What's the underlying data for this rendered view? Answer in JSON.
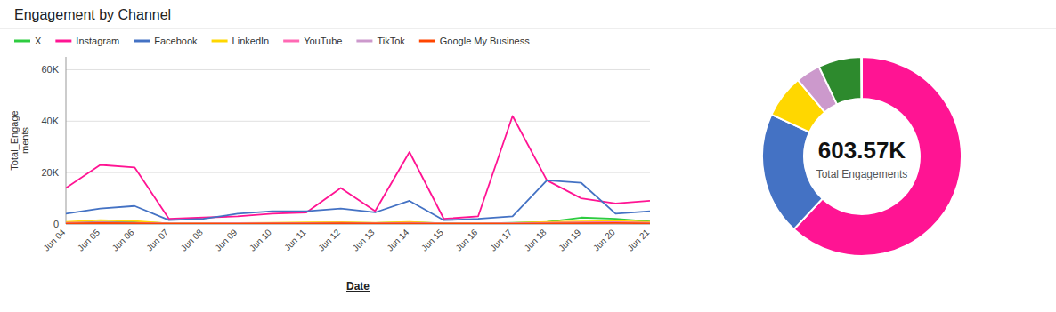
{
  "chart_data": [
    {
      "type": "line",
      "title": "Engagement by Channel",
      "xlabel": "Date",
      "ylabel": "Total_Engage\nments",
      "categories": [
        "Jun 04",
        "Jun 05",
        "Jun 06",
        "Jun 07",
        "Jun 08",
        "Jun 09",
        "Jun 10",
        "Jun 11",
        "Jun 12",
        "Jun 13",
        "Jun 14",
        "Jun 15",
        "Jun 16",
        "Jun 17",
        "Jun 18",
        "Jun 19",
        "Jun 20",
        "Jun 21"
      ],
      "series": [
        {
          "name": "X",
          "color": "#2ecc40",
          "values": [
            500,
            800,
            700,
            300,
            200,
            300,
            300,
            400,
            500,
            400,
            600,
            300,
            200,
            500,
            800,
            2500,
            2000,
            1000
          ]
        },
        {
          "name": "Instagram",
          "color": "#ff1493",
          "values": [
            14000,
            23000,
            22000,
            2000,
            2500,
            3000,
            4000,
            4500,
            14000,
            5000,
            28000,
            2000,
            3000,
            42000,
            17000,
            10000,
            8000,
            9000
          ]
        },
        {
          "name": "Facebook",
          "color": "#4472c4",
          "values": [
            4000,
            6000,
            7000,
            1500,
            2000,
            4000,
            5000,
            5000,
            6000,
            4500,
            9000,
            1500,
            2000,
            3000,
            17000,
            16000,
            4000,
            5000
          ]
        },
        {
          "name": "LinkedIn",
          "color": "#ffd700",
          "values": [
            800,
            1500,
            1200,
            200,
            300,
            400,
            500,
            600,
            700,
            500,
            800,
            200,
            300,
            400,
            800,
            1000,
            1200,
            800
          ]
        },
        {
          "name": "YouTube",
          "color": "#ff69b4",
          "values": [
            500,
            600,
            500,
            200,
            200,
            300,
            300,
            400,
            500,
            300,
            500,
            200,
            200,
            300,
            500,
            600,
            700,
            500
          ]
        },
        {
          "name": "TikTok",
          "color": "#cc99cc",
          "values": [
            300,
            500,
            400,
            100,
            100,
            200,
            200,
            300,
            400,
            200,
            300,
            100,
            100,
            200,
            300,
            400,
            500,
            300
          ]
        },
        {
          "name": "Google My Business",
          "color": "#ff4500",
          "values": [
            200,
            400,
            300,
            100,
            100,
            150,
            200,
            250,
            300,
            200,
            250,
            100,
            100,
            150,
            200,
            300,
            400,
            250
          ]
        }
      ],
      "ylim": [
        0,
        65000
      ],
      "yticks": [
        0,
        {
          "value": 20000,
          "label": "20K"
        },
        {
          "value": 40000,
          "label": "40K"
        },
        {
          "value": 60000,
          "label": "60K"
        }
      ],
      "grid": true,
      "legend": "top"
    },
    {
      "type": "donut",
      "values": [
        0.62,
        0.2,
        0.07,
        0.04,
        0.07,
        0.001
      ],
      "colors": [
        "#ff1493",
        "#4472c4",
        "#ffd700",
        "#cc99cc",
        "#2d8a2d",
        "#ff69b4"
      ],
      "annotations": [
        "603.57K",
        "Total Engagements"
      ]
    }
  ]
}
